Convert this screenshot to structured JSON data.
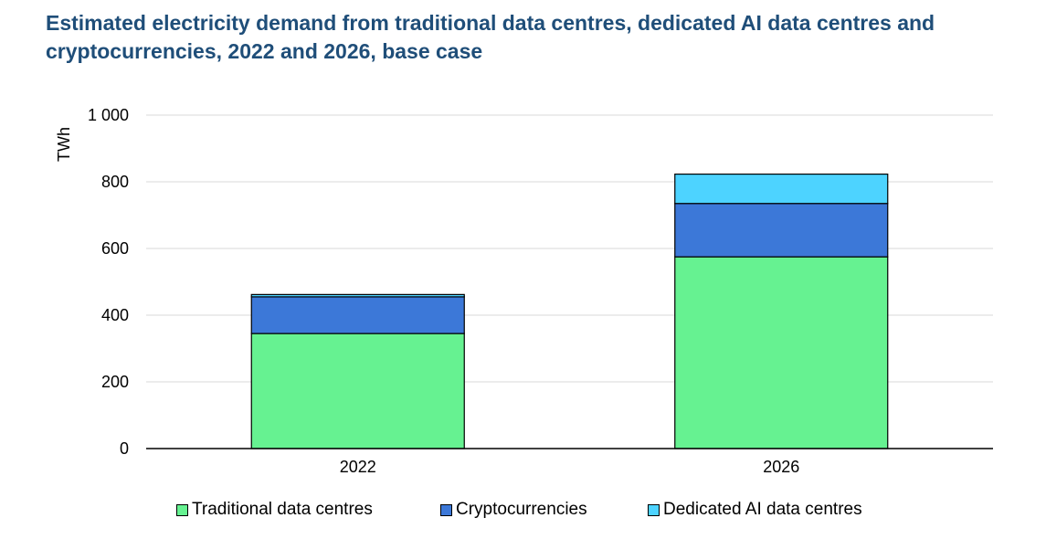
{
  "title": "Estimated electricity demand from traditional data centres, dedicated AI data centres and cryptocurrencies, 2022 and 2026, base case",
  "chart_data": {
    "type": "bar",
    "stacked": true,
    "title": "Estimated electricity demand from traditional data centres, dedicated AI data centres and cryptocurrencies, 2022 and 2026, base case",
    "xlabel": "",
    "ylabel": "TWh",
    "ylim": [
      0,
      1000
    ],
    "yticks": [
      0,
      200,
      400,
      600,
      800,
      1000
    ],
    "ytick_labels": [
      "0",
      "200",
      "400",
      "600",
      "800",
      "1 000"
    ],
    "categories": [
      "2022",
      "2026"
    ],
    "series": [
      {
        "name": "Traditional data centres",
        "color": "#66f291",
        "values": [
          345,
          575
        ]
      },
      {
        "name": "Cryptocurrencies",
        "color": "#3c78d8",
        "values": [
          110,
          160
        ]
      },
      {
        "name": "Dedicated AI data centres",
        "color": "#4dd3ff",
        "values": [
          7,
          88
        ]
      }
    ],
    "grid": true,
    "legend_position": "bottom"
  }
}
